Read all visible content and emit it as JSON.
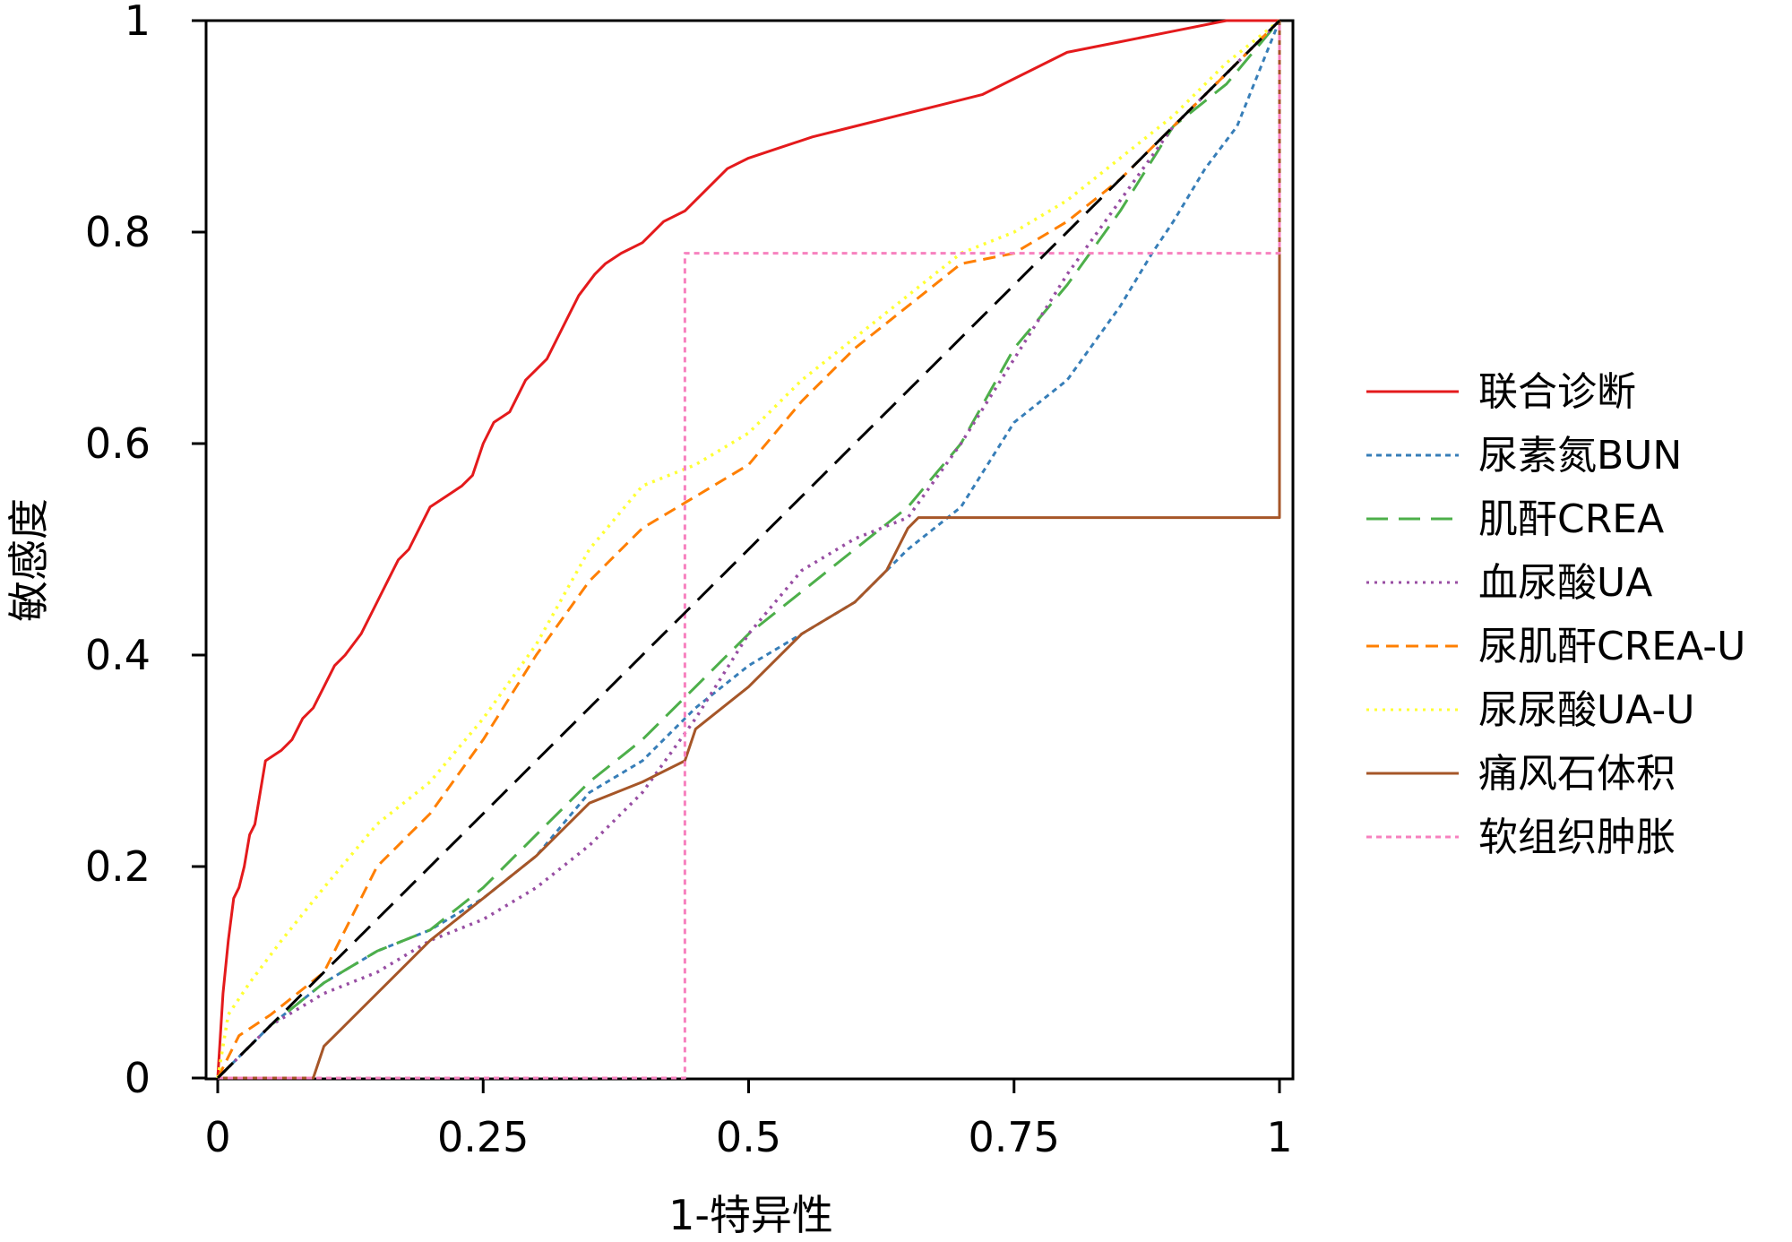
{
  "chart_data": {
    "type": "line",
    "title": "",
    "xlabel": "1-特异性",
    "ylabel": "敏感度",
    "xlim": [
      0,
      1
    ],
    "ylim": [
      0,
      1
    ],
    "x_ticks": [
      {
        "value": 0,
        "label": "0"
      },
      {
        "value": 0.25,
        "label": "0.25"
      },
      {
        "value": 0.5,
        "label": "0.5"
      },
      {
        "value": 0.75,
        "label": "0.75"
      },
      {
        "value": 1,
        "label": "1"
      }
    ],
    "y_ticks": [
      {
        "value": 0,
        "label": "0"
      },
      {
        "value": 0.2,
        "label": "0.2"
      },
      {
        "value": 0.4,
        "label": "0.4"
      },
      {
        "value": 0.6,
        "label": "0.6"
      },
      {
        "value": 0.8,
        "label": "0.8"
      },
      {
        "value": 1,
        "label": "1"
      }
    ],
    "grid": false,
    "legend_position": "right",
    "reference_line": {
      "name": "reference",
      "color": "#000000",
      "dash": "long",
      "points": [
        [
          0,
          0
        ],
        [
          1,
          1
        ]
      ]
    },
    "series": [
      {
        "name": "联合诊断",
        "color": "#e41a1c",
        "dash": "solid",
        "points": [
          [
            0,
            0
          ],
          [
            0.005,
            0.08
          ],
          [
            0.01,
            0.13
          ],
          [
            0.015,
            0.17
          ],
          [
            0.02,
            0.18
          ],
          [
            0.025,
            0.2
          ],
          [
            0.03,
            0.23
          ],
          [
            0.035,
            0.24
          ],
          [
            0.04,
            0.27
          ],
          [
            0.045,
            0.3
          ],
          [
            0.06,
            0.31
          ],
          [
            0.07,
            0.32
          ],
          [
            0.08,
            0.34
          ],
          [
            0.09,
            0.35
          ],
          [
            0.1,
            0.37
          ],
          [
            0.11,
            0.39
          ],
          [
            0.12,
            0.4
          ],
          [
            0.135,
            0.42
          ],
          [
            0.15,
            0.45
          ],
          [
            0.16,
            0.47
          ],
          [
            0.17,
            0.49
          ],
          [
            0.18,
            0.5
          ],
          [
            0.19,
            0.52
          ],
          [
            0.2,
            0.54
          ],
          [
            0.215,
            0.55
          ],
          [
            0.23,
            0.56
          ],
          [
            0.24,
            0.57
          ],
          [
            0.25,
            0.6
          ],
          [
            0.26,
            0.62
          ],
          [
            0.275,
            0.63
          ],
          [
            0.28,
            0.64
          ],
          [
            0.29,
            0.66
          ],
          [
            0.3,
            0.67
          ],
          [
            0.31,
            0.68
          ],
          [
            0.32,
            0.7
          ],
          [
            0.33,
            0.72
          ],
          [
            0.34,
            0.74
          ],
          [
            0.355,
            0.76
          ],
          [
            0.365,
            0.77
          ],
          [
            0.38,
            0.78
          ],
          [
            0.4,
            0.79
          ],
          [
            0.42,
            0.81
          ],
          [
            0.44,
            0.82
          ],
          [
            0.46,
            0.84
          ],
          [
            0.48,
            0.86
          ],
          [
            0.5,
            0.87
          ],
          [
            0.53,
            0.88
          ],
          [
            0.56,
            0.89
          ],
          [
            0.6,
            0.9
          ],
          [
            0.64,
            0.91
          ],
          [
            0.68,
            0.92
          ],
          [
            0.72,
            0.93
          ],
          [
            0.76,
            0.95
          ],
          [
            0.8,
            0.97
          ],
          [
            0.85,
            0.98
          ],
          [
            0.9,
            0.99
          ],
          [
            0.95,
            1
          ],
          [
            1,
            1
          ]
        ]
      },
      {
        "name": "尿素氮BUN",
        "color": "#377eb8",
        "dash": "short",
        "points": [
          [
            0,
            0
          ],
          [
            0.05,
            0.05
          ],
          [
            0.1,
            0.09
          ],
          [
            0.15,
            0.12
          ],
          [
            0.2,
            0.14
          ],
          [
            0.25,
            0.17
          ],
          [
            0.3,
            0.21
          ],
          [
            0.35,
            0.27
          ],
          [
            0.4,
            0.3
          ],
          [
            0.45,
            0.35
          ],
          [
            0.5,
            0.39
          ],
          [
            0.55,
            0.42
          ],
          [
            0.6,
            0.45
          ],
          [
            0.65,
            0.5
          ],
          [
            0.7,
            0.54
          ],
          [
            0.75,
            0.62
          ],
          [
            0.8,
            0.66
          ],
          [
            0.85,
            0.73
          ],
          [
            0.88,
            0.78
          ],
          [
            0.9,
            0.81
          ],
          [
            0.93,
            0.86
          ],
          [
            0.96,
            0.9
          ],
          [
            1,
            1
          ]
        ]
      },
      {
        "name": "肌酐CREA",
        "color": "#4daf4a",
        "dash": "long",
        "points": [
          [
            0,
            0
          ],
          [
            0.05,
            0.05
          ],
          [
            0.1,
            0.09
          ],
          [
            0.15,
            0.12
          ],
          [
            0.2,
            0.14
          ],
          [
            0.25,
            0.18
          ],
          [
            0.3,
            0.23
          ],
          [
            0.35,
            0.28
          ],
          [
            0.4,
            0.32
          ],
          [
            0.45,
            0.37
          ],
          [
            0.5,
            0.42
          ],
          [
            0.55,
            0.46
          ],
          [
            0.6,
            0.5
          ],
          [
            0.65,
            0.54
          ],
          [
            0.7,
            0.6
          ],
          [
            0.75,
            0.69
          ],
          [
            0.8,
            0.75
          ],
          [
            0.85,
            0.82
          ],
          [
            0.9,
            0.9
          ],
          [
            0.95,
            0.94
          ],
          [
            1,
            1
          ]
        ]
      },
      {
        "name": "血尿酸UA",
        "color": "#984ea3",
        "dash": "dotted",
        "points": [
          [
            0,
            0
          ],
          [
            0.05,
            0.05
          ],
          [
            0.1,
            0.08
          ],
          [
            0.15,
            0.1
          ],
          [
            0.2,
            0.13
          ],
          [
            0.25,
            0.15
          ],
          [
            0.3,
            0.18
          ],
          [
            0.35,
            0.22
          ],
          [
            0.4,
            0.27
          ],
          [
            0.45,
            0.34
          ],
          [
            0.5,
            0.42
          ],
          [
            0.55,
            0.48
          ],
          [
            0.6,
            0.51
          ],
          [
            0.65,
            0.53
          ],
          [
            0.7,
            0.6
          ],
          [
            0.75,
            0.68
          ],
          [
            0.8,
            0.76
          ],
          [
            0.85,
            0.83
          ],
          [
            0.9,
            0.9
          ],
          [
            0.95,
            0.95
          ],
          [
            1,
            1
          ]
        ]
      },
      {
        "name": "尿肌酐CREA-U",
        "color": "#ff7f00",
        "dash": "medium",
        "points": [
          [
            0,
            0
          ],
          [
            0.02,
            0.04
          ],
          [
            0.05,
            0.06
          ],
          [
            0.1,
            0.1
          ],
          [
            0.15,
            0.2
          ],
          [
            0.2,
            0.25
          ],
          [
            0.25,
            0.32
          ],
          [
            0.3,
            0.4
          ],
          [
            0.35,
            0.47
          ],
          [
            0.4,
            0.52
          ],
          [
            0.45,
            0.55
          ],
          [
            0.5,
            0.58
          ],
          [
            0.55,
            0.64
          ],
          [
            0.6,
            0.69
          ],
          [
            0.65,
            0.73
          ],
          [
            0.7,
            0.77
          ],
          [
            0.75,
            0.78
          ],
          [
            0.8,
            0.81
          ],
          [
            0.85,
            0.85
          ],
          [
            0.9,
            0.9
          ],
          [
            0.95,
            0.95
          ],
          [
            1,
            1
          ]
        ]
      },
      {
        "name": "尿尿酸UA-U",
        "color": "#ffff33",
        "dash": "dotted",
        "points": [
          [
            0,
            0
          ],
          [
            0.01,
            0.06
          ],
          [
            0.03,
            0.09
          ],
          [
            0.06,
            0.13
          ],
          [
            0.1,
            0.18
          ],
          [
            0.15,
            0.24
          ],
          [
            0.2,
            0.28
          ],
          [
            0.25,
            0.34
          ],
          [
            0.3,
            0.41
          ],
          [
            0.35,
            0.5
          ],
          [
            0.4,
            0.56
          ],
          [
            0.45,
            0.58
          ],
          [
            0.5,
            0.61
          ],
          [
            0.55,
            0.66
          ],
          [
            0.6,
            0.7
          ],
          [
            0.65,
            0.74
          ],
          [
            0.7,
            0.78
          ],
          [
            0.75,
            0.8
          ],
          [
            0.8,
            0.83
          ],
          [
            0.85,
            0.87
          ],
          [
            0.9,
            0.91
          ],
          [
            0.95,
            0.96
          ],
          [
            1,
            1
          ]
        ]
      },
      {
        "name": "痛风石体积",
        "color": "#a65628",
        "dash": "solid",
        "points": [
          [
            0,
            0
          ],
          [
            0.09,
            0
          ],
          [
            0.1,
            0.03
          ],
          [
            0.15,
            0.08
          ],
          [
            0.2,
            0.13
          ],
          [
            0.25,
            0.17
          ],
          [
            0.3,
            0.21
          ],
          [
            0.35,
            0.26
          ],
          [
            0.4,
            0.28
          ],
          [
            0.44,
            0.3
          ],
          [
            0.45,
            0.33
          ],
          [
            0.5,
            0.37
          ],
          [
            0.55,
            0.42
          ],
          [
            0.6,
            0.45
          ],
          [
            0.63,
            0.48
          ],
          [
            0.65,
            0.52
          ],
          [
            0.66,
            0.53
          ],
          [
            1,
            0.53
          ],
          [
            1,
            0.78
          ],
          [
            1,
            1
          ]
        ]
      },
      {
        "name": "软组织肿胀",
        "color": "#f781bf",
        "dash": "short",
        "points": [
          [
            0,
            0
          ],
          [
            0.44,
            0
          ],
          [
            0.44,
            0.78
          ],
          [
            1,
            0.78
          ],
          [
            1,
            1
          ]
        ]
      }
    ]
  }
}
